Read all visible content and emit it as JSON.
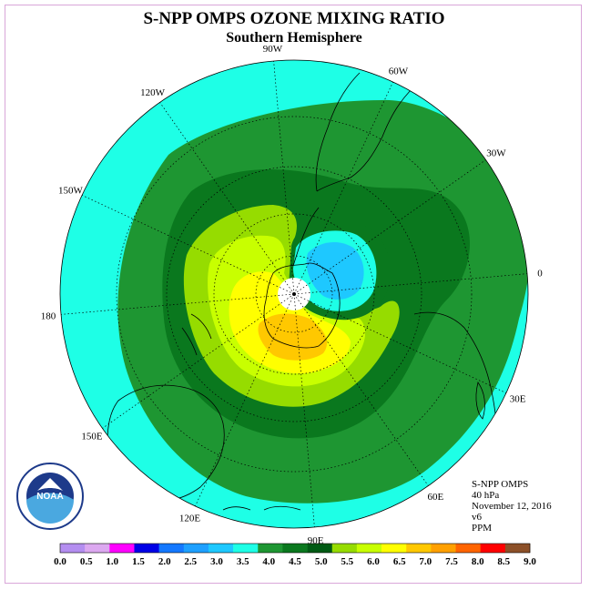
{
  "title": "S-NPP OMPS OZONE MIXING RATIO",
  "subtitle": "Southern Hemisphere",
  "longitude_labels": [
    {
      "label": "90W",
      "angle": 95
    },
    {
      "label": "60W",
      "angle": 65
    },
    {
      "label": "30W",
      "angle": 35
    },
    {
      "label": "0",
      "angle": 5
    },
    {
      "label": "30E",
      "angle": -25
    },
    {
      "label": "60E",
      "angle": -55
    },
    {
      "label": "90E",
      "angle": -85
    },
    {
      "label": "120E",
      "angle": -115
    },
    {
      "label": "150E",
      "angle": -145
    },
    {
      "label": "180",
      "angle": 185
    },
    {
      "label": "150W",
      "angle": 155
    },
    {
      "label": "120W",
      "angle": 125
    }
  ],
  "info": {
    "instrument": "S-NPP OMPS",
    "level": "40 hPa",
    "date": "November 12, 2016",
    "version": "v6",
    "units": "PPM"
  },
  "logo": {
    "text": "NOAA",
    "ring_text": "NATIONAL OCEANIC AND ATMOSPHERIC ADMINISTRATION · U.S. DEPARTMENT OF COMMERCE"
  },
  "colorbar": {
    "ticks": [
      "0.0",
      "0.5",
      "1.0",
      "1.5",
      "2.0",
      "2.5",
      "3.0",
      "3.5",
      "4.0",
      "4.5",
      "5.0",
      "5.5",
      "6.0",
      "6.5",
      "7.0",
      "7.5",
      "8.0",
      "8.5",
      "9.0"
    ],
    "colors": [
      "#b48ef0",
      "#dca8f0",
      "#ff00ff",
      "#0000e6",
      "#1478ff",
      "#1ea0ff",
      "#1ec8ff",
      "#1effe6",
      "#1e9632",
      "#0a781e",
      "#005a14",
      "#96dc00",
      "#c8ff00",
      "#ffff00",
      "#ffc800",
      "#ffa000",
      "#ff6400",
      "#ff0000",
      "#8c5028"
    ]
  },
  "chart_data": {
    "type": "heatmap",
    "projection": "south-polar-stereographic",
    "level": "40 hPa",
    "units": "PPM",
    "date": "November 12, 2016",
    "range": [
      0.0,
      9.0
    ],
    "step": 0.5
  }
}
